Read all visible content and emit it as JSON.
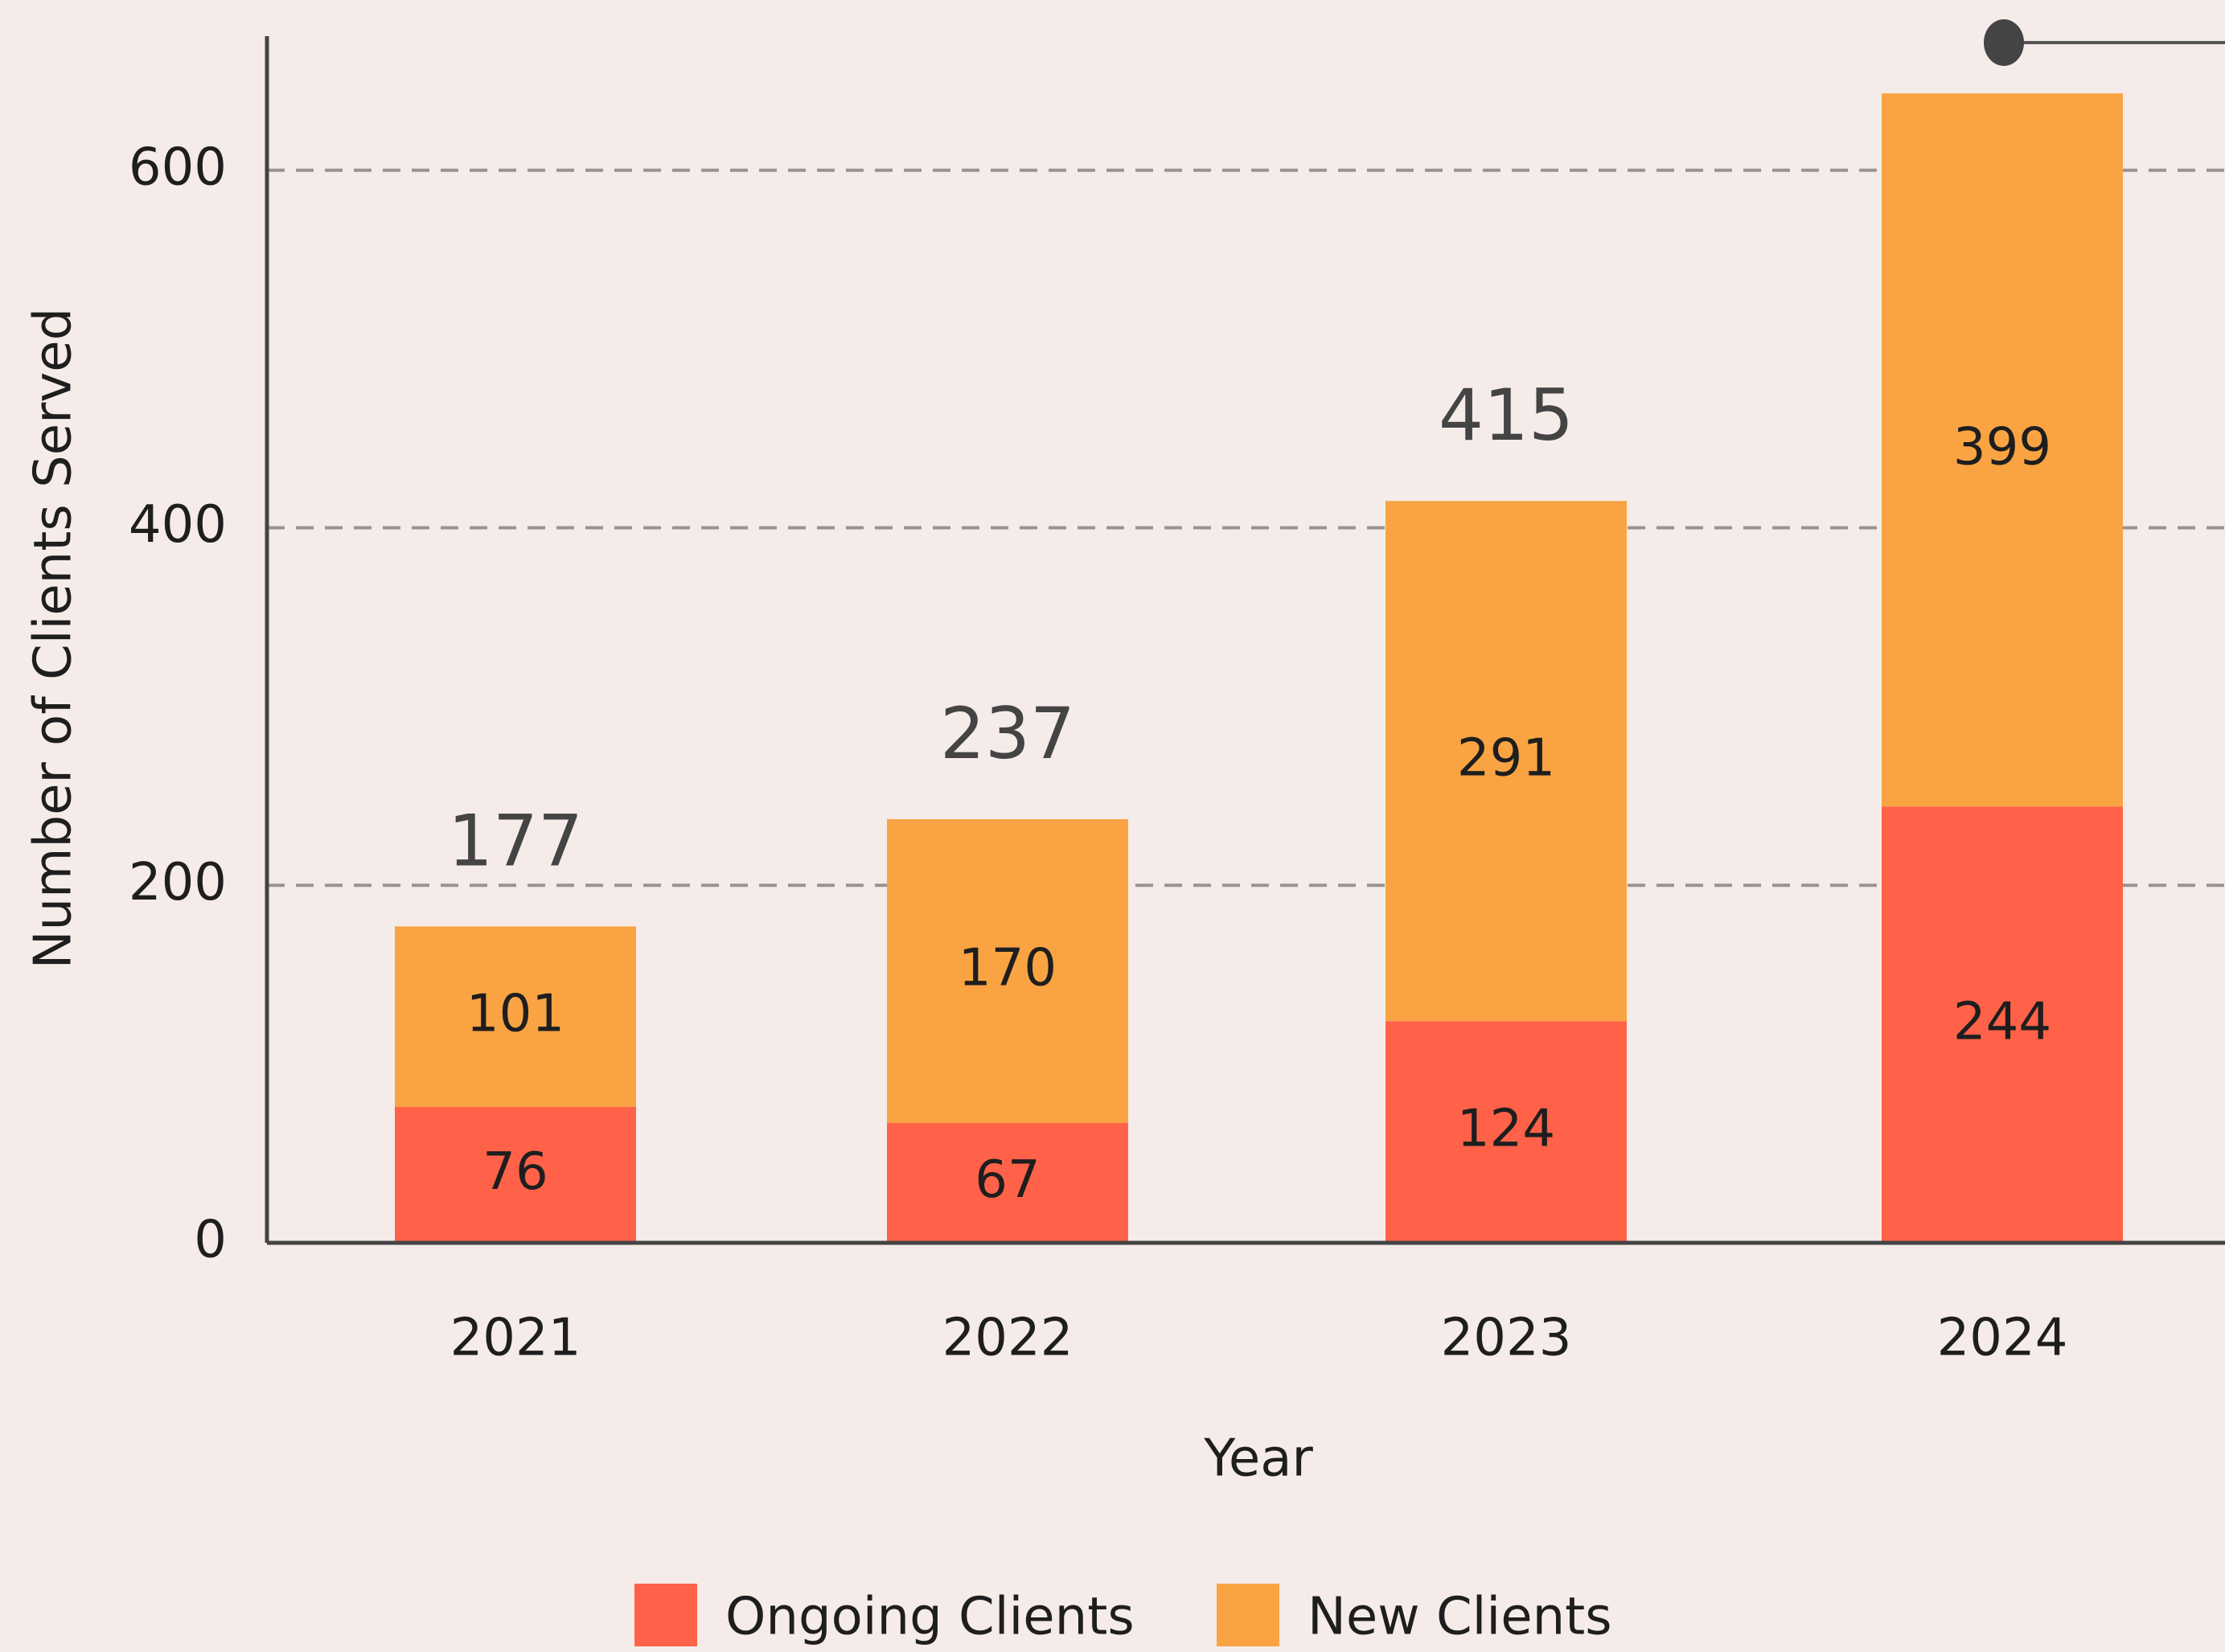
{
  "chart_data": {
    "type": "stacked_bar",
    "categories": [
      "2021",
      "2022",
      "2023",
      "2024"
    ],
    "series": [
      {
        "name": "Ongoing Clients",
        "color": "#ff6248",
        "values": [
          76,
          67,
          124,
          244
        ]
      },
      {
        "name": "New Clients",
        "color": "#f9a343",
        "values": [
          101,
          170,
          291,
          399
        ]
      }
    ],
    "totals": [
      177,
      237,
      415,
      null
    ],
    "x_label": "Year",
    "y_label": "Number of Clients Served",
    "ylim": [
      0,
      675
    ],
    "yticks": [
      0,
      200,
      400,
      600
    ],
    "grid": true,
    "legend": "bottom"
  }
}
